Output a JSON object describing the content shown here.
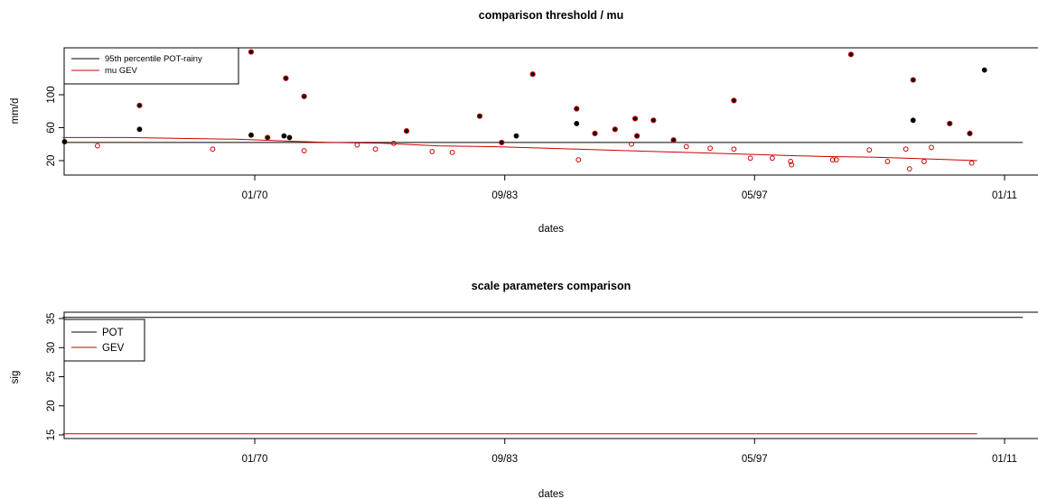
{
  "chart_data": [
    {
      "type": "scatter",
      "title": "comparison threshold / mu",
      "xlabel": "dates",
      "ylabel": "mm/d",
      "x_ticks": [
        "01/70",
        "09/83",
        "05/97",
        "01/11"
      ],
      "y_ticks": [
        20,
        60,
        100
      ],
      "ylim": [
        10,
        160
      ],
      "legend": {
        "position": "top-left",
        "entries": [
          {
            "label": "95th percentile POT-rainy",
            "color": "#000000"
          },
          {
            "label": "mu GEV",
            "color": "#cc0000"
          }
        ]
      },
      "lines": [
        {
          "name": "95th percentile POT-rainy",
          "color": "#000000",
          "points": [
            [
              1959.5,
              42
            ],
            [
              2012.0,
              42
            ]
          ]
        },
        {
          "name": "mu GEV",
          "color": "#cc0000",
          "points": [
            [
              1959.5,
              48
            ],
            [
              1963.0,
              48
            ],
            [
              1966.0,
              47
            ],
            [
              1969.0,
              46
            ],
            [
              1971.5,
              44
            ],
            [
              1974.0,
              42
            ],
            [
              1977.0,
              41
            ],
            [
              1980.0,
              38
            ],
            [
              1983.0,
              37
            ],
            [
              1986.0,
              35
            ],
            [
              1989.0,
              33
            ],
            [
              1992.0,
              31
            ],
            [
              1995.0,
              29
            ],
            [
              1998.0,
              27
            ],
            [
              2001.0,
              25
            ],
            [
              2004.0,
              24
            ],
            [
              2007.0,
              22
            ],
            [
              2009.5,
              20
            ]
          ]
        }
      ],
      "black_points": [
        {
          "x": 1959.6,
          "y": 43
        },
        {
          "x": 1963.7,
          "y": 58
        },
        {
          "x": 1969.8,
          "y": 51
        },
        {
          "x": 1971.6,
          "y": 50
        },
        {
          "x": 1971.9,
          "y": 48
        },
        {
          "x": 1984.3,
          "y": 50
        },
        {
          "x": 1987.6,
          "y": 65
        },
        {
          "x": 2006.0,
          "y": 69
        },
        {
          "x": 2009.9,
          "y": 130
        }
      ],
      "filled_points": [
        {
          "x": 1963.7,
          "y": 87
        },
        {
          "x": 1965.1,
          "y": 116
        },
        {
          "x": 1969.8,
          "y": 152
        },
        {
          "x": 1970.7,
          "y": 48
        },
        {
          "x": 1971.7,
          "y": 120
        },
        {
          "x": 1972.7,
          "y": 98
        },
        {
          "x": 1978.3,
          "y": 56
        },
        {
          "x": 1982.3,
          "y": 74
        },
        {
          "x": 1983.5,
          "y": 42
        },
        {
          "x": 1985.2,
          "y": 125
        },
        {
          "x": 1987.6,
          "y": 83
        },
        {
          "x": 1988.6,
          "y": 53
        },
        {
          "x": 1989.7,
          "y": 58
        },
        {
          "x": 1990.8,
          "y": 71
        },
        {
          "x": 1990.9,
          "y": 50
        },
        {
          "x": 1991.8,
          "y": 69
        },
        {
          "x": 1992.9,
          "y": 45
        },
        {
          "x": 1996.2,
          "y": 93
        },
        {
          "x": 2002.6,
          "y": 149
        },
        {
          "x": 2006.0,
          "y": 118
        },
        {
          "x": 2008.0,
          "y": 65
        },
        {
          "x": 2009.1,
          "y": 53
        }
      ],
      "open_points": [
        {
          "x": 1961.4,
          "y": 38
        },
        {
          "x": 1967.7,
          "y": 34
        },
        {
          "x": 1972.7,
          "y": 32
        },
        {
          "x": 1975.6,
          "y": 39
        },
        {
          "x": 1976.6,
          "y": 34
        },
        {
          "x": 1977.6,
          "y": 41
        },
        {
          "x": 1979.7,
          "y": 31
        },
        {
          "x": 1980.8,
          "y": 30
        },
        {
          "x": 1987.7,
          "y": 21
        },
        {
          "x": 1990.6,
          "y": 40
        },
        {
          "x": 1993.6,
          "y": 37
        },
        {
          "x": 1994.9,
          "y": 35
        },
        {
          "x": 1996.2,
          "y": 34
        },
        {
          "x": 1997.1,
          "y": 23
        },
        {
          "x": 1998.3,
          "y": 23
        },
        {
          "x": 1999.3,
          "y": 19
        },
        {
          "x": 1999.35,
          "y": 15
        },
        {
          "x": 2001.6,
          "y": 21
        },
        {
          "x": 2001.8,
          "y": 21
        },
        {
          "x": 2003.6,
          "y": 33
        },
        {
          "x": 2004.6,
          "y": 19
        },
        {
          "x": 2005.6,
          "y": 34
        },
        {
          "x": 2005.8,
          "y": 10
        },
        {
          "x": 2006.6,
          "y": 19
        },
        {
          "x": 2007.0,
          "y": 36
        },
        {
          "x": 2009.2,
          "y": 17
        }
      ]
    },
    {
      "type": "line",
      "title": "scale parameters comparison",
      "xlabel": "dates",
      "ylabel": "sig",
      "x_ticks": [
        "01/70",
        "09/83",
        "05/97",
        "01/11"
      ],
      "y_ticks": [
        15,
        20,
        25,
        30,
        35
      ],
      "ylim": [
        14.7,
        36.5
      ],
      "legend": {
        "position": "top-left",
        "entries": [
          {
            "label": "POT",
            "color": "#000000"
          },
          {
            "label": "GEV",
            "color": "#cc0000"
          }
        ]
      },
      "series": [
        {
          "name": "POT",
          "color": "#000000",
          "points": [
            [
              1959.5,
              35.2
            ],
            [
              2012.0,
              35.2
            ]
          ]
        },
        {
          "name": "GEV",
          "color": "#cc0000",
          "points": [
            [
              1959.5,
              15.2
            ],
            [
              2009.5,
              15.2
            ]
          ]
        }
      ]
    }
  ]
}
